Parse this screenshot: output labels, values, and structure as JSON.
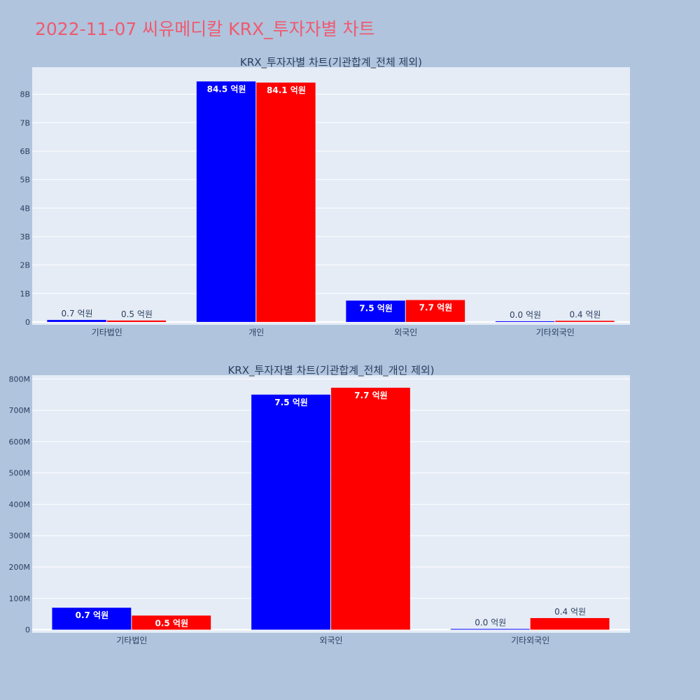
{
  "title": "2022-11-07 씨유메디칼 KRX_투자자별 차트",
  "chart_data": [
    {
      "type": "bar",
      "title": "KRX_투자자별 차트(기관합계_전체 제외)",
      "categories": [
        "기타법인",
        "개인",
        "외국인",
        "기타외국인"
      ],
      "series": [
        {
          "color": "#0000ff",
          "values": [
            70000000,
            8450000000,
            750000000,
            1000000
          ],
          "labels": [
            "0.7 억원",
            "84.5 억원",
            "7.5 억원",
            "0.0 억원"
          ]
        },
        {
          "color": "#ff0000",
          "values": [
            50000000,
            8410000000,
            770000000,
            40000000
          ],
          "labels": [
            "0.5 억원",
            "84.1 억원",
            "7.7 억원",
            "0.4 억원"
          ]
        }
      ],
      "ylim": [
        -100000000,
        8950000000
      ],
      "yticks": [
        0,
        1000000000,
        2000000000,
        3000000000,
        4000000000,
        5000000000,
        6000000000,
        7000000000,
        8000000000
      ],
      "ytick_labels": [
        "0",
        "1B",
        "2B",
        "3B",
        "4B",
        "5B",
        "6B",
        "7B",
        "8B"
      ]
    },
    {
      "type": "bar",
      "title": "KRX_투자자별 차트(기관합계_전체_개인 제외)",
      "categories": [
        "기타법인",
        "외국인",
        "기타외국인"
      ],
      "series": [
        {
          "color": "#0000ff",
          "values": [
            70000000,
            750000000,
            1000000
          ],
          "labels": [
            "0.7 억원",
            "7.5 억원",
            "0.0 억원"
          ]
        },
        {
          "color": "#ff0000",
          "values": [
            45000000,
            772000000,
            37000000
          ],
          "labels": [
            "0.5 억원",
            "7.7 억원",
            "0.4 억원"
          ]
        }
      ],
      "ylim": [
        -10000000,
        812000000
      ],
      "yticks": [
        0,
        100000000,
        200000000,
        300000000,
        400000000,
        500000000,
        600000000,
        700000000,
        800000000
      ],
      "ytick_labels": [
        "0",
        "100M",
        "200M",
        "300M",
        "400M",
        "500M",
        "600M",
        "700M",
        "800M"
      ]
    }
  ]
}
